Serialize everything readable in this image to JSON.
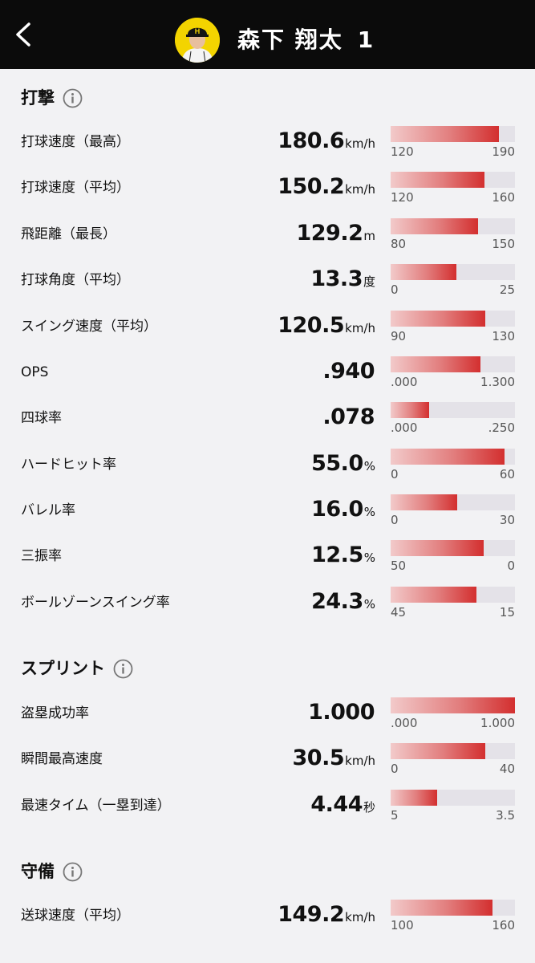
{
  "header": {
    "player_name": "森下 翔太",
    "player_number": "1"
  },
  "sections": {
    "batting": {
      "title": "打撃"
    },
    "sprint": {
      "title": "スプリント"
    },
    "defense": {
      "title": "守備"
    }
  },
  "rows": [
    {
      "label": "打球速度（最高）",
      "value": "180.6",
      "unit": "km/h",
      "min": "120",
      "max": "190",
      "fill": 0.87
    },
    {
      "label": "打球速度（平均）",
      "value": "150.2",
      "unit": "km/h",
      "min": "120",
      "max": "160",
      "fill": 0.755
    },
    {
      "label": "飛距離（最長）",
      "value": "129.2",
      "unit": "m",
      "min": "80",
      "max": "150",
      "fill": 0.703
    },
    {
      "label": "打球角度（平均）",
      "value": "13.3",
      "unit": "度",
      "min": "0",
      "max": "25",
      "fill": 0.532
    },
    {
      "label": "スイング速度（平均）",
      "value": "120.5",
      "unit": "km/h",
      "min": "90",
      "max": "130",
      "fill": 0.763
    },
    {
      "label": "OPS",
      "value": ".940",
      "unit": "",
      "min": ".000",
      "max": "1.300",
      "fill": 0.723
    },
    {
      "label": "四球率",
      "value": ".078",
      "unit": "",
      "min": ".000",
      "max": ".250",
      "fill": 0.312
    },
    {
      "label": "ハードヒット率",
      "value": "55.0",
      "unit": "%",
      "min": "0",
      "max": "60",
      "fill": 0.917
    },
    {
      "label": "バレル率",
      "value": "16.0",
      "unit": "%",
      "min": "0",
      "max": "30",
      "fill": 0.533
    },
    {
      "label": "三振率",
      "value": "12.5",
      "unit": "%",
      "min": "50",
      "max": "0",
      "fill": 0.75
    },
    {
      "label": "ボールゾーンスイング率",
      "value": "24.3",
      "unit": "%",
      "min": "45",
      "max": "15",
      "fill": 0.69
    },
    {
      "label": "盗塁成功率",
      "value": "1.000",
      "unit": "",
      "min": ".000",
      "max": "1.000",
      "fill": 1.0
    },
    {
      "label": "瞬間最高速度",
      "value": "30.5",
      "unit": "km/h",
      "min": "0",
      "max": "40",
      "fill": 0.763
    },
    {
      "label": "最速タイム（一塁到達）",
      "value": "4.44",
      "unit": "秒",
      "min": "5",
      "max": "3.5",
      "fill": 0.373
    },
    {
      "label": "送球速度（平均）",
      "value": "149.2",
      "unit": "km/h",
      "min": "100",
      "max": "160",
      "fill": 0.82
    }
  ],
  "colors": {
    "header_bg": "#0b0b0b",
    "avatar_bg": "#f3d400",
    "bar_accent": "#d32f2f",
    "bar_track": "#e4e2e8"
  },
  "icons": {
    "back": "chevron-left-icon",
    "info": "info-icon"
  }
}
